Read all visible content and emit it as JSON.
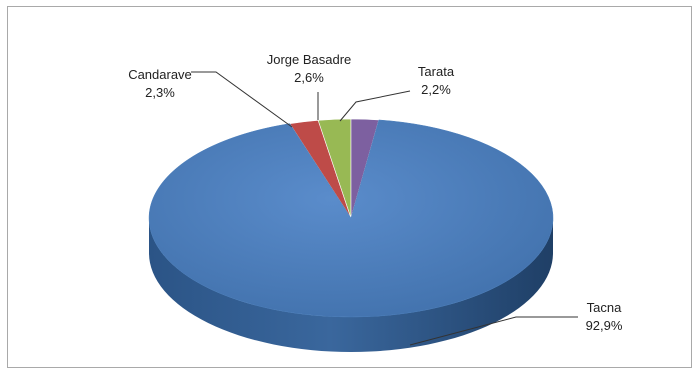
{
  "chart_data": {
    "type": "pie",
    "title": "",
    "legend": "none",
    "style": "3d",
    "slices": [
      {
        "name": "Tacna",
        "value": 92.9,
        "label": "92,9%",
        "color": "#4a7ebb"
      },
      {
        "name": "Candarave",
        "value": 2.3,
        "label": "2,3%",
        "color": "#be4b48"
      },
      {
        "name": "Jorge Basadre",
        "value": 2.6,
        "label": "2,6%",
        "color": "#98b954"
      },
      {
        "name": "Tarata",
        "value": 2.2,
        "label": "2,2%",
        "color": "#7d60a0"
      }
    ]
  }
}
